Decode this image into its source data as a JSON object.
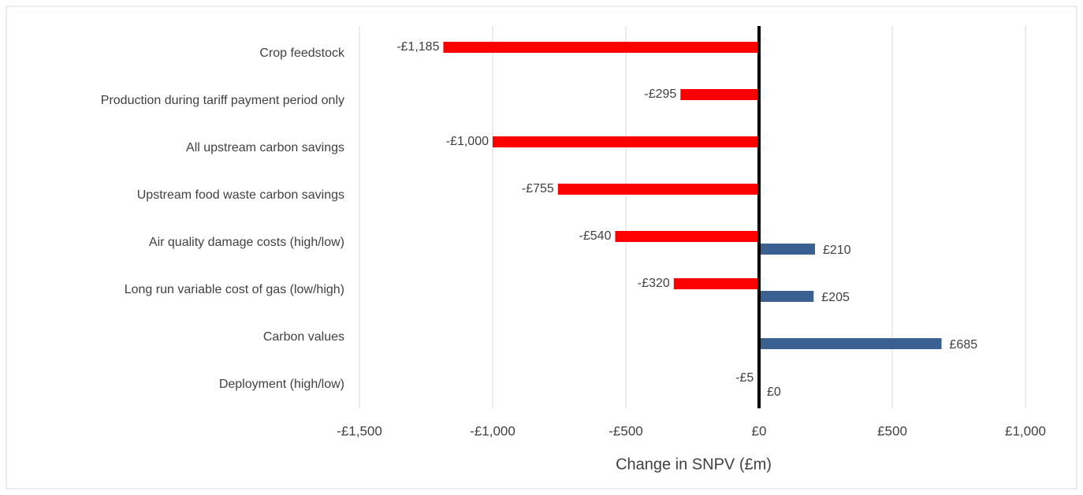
{
  "chart_data": {
    "type": "bar",
    "orientation": "horizontal",
    "x_label": "Change in SNPV (£m)",
    "categories": [
      "Crop feedstock",
      "Production during tariff payment period only",
      "All upstream carbon savings",
      "Upstream food waste carbon savings",
      "Air quality damage costs (high/low)",
      "Long run variable cost of gas (low/high)",
      "Carbon values",
      "Deployment (high/low)"
    ],
    "series": [
      {
        "color": "#ff0000",
        "values": [
          -1185,
          -295,
          -1000,
          -755,
          -540,
          -320,
          null,
          -5
        ],
        "value_labels": [
          "-£1,185",
          "-£295",
          "-£1,000",
          "-£755",
          "-£540",
          "-£320",
          null,
          "-£5"
        ]
      },
      {
        "color": "#3a5f91",
        "values": [
          null,
          null,
          null,
          null,
          210,
          205,
          685,
          0
        ],
        "value_labels": [
          null,
          null,
          null,
          null,
          "£210",
          "£205",
          "£685",
          "£0"
        ]
      }
    ],
    "xlim": [
      -1500,
      1000
    ],
    "xticks": [
      {
        "value": -1500,
        "label": "-£1,500"
      },
      {
        "value": -1000,
        "label": "-£1,000"
      },
      {
        "value": -500,
        "label": "-£500"
      },
      {
        "value": 0,
        "label": "£0"
      },
      {
        "value": 500,
        "label": "£500"
      },
      {
        "value": 1000,
        "label": "£1,000"
      }
    ],
    "grid": true
  }
}
